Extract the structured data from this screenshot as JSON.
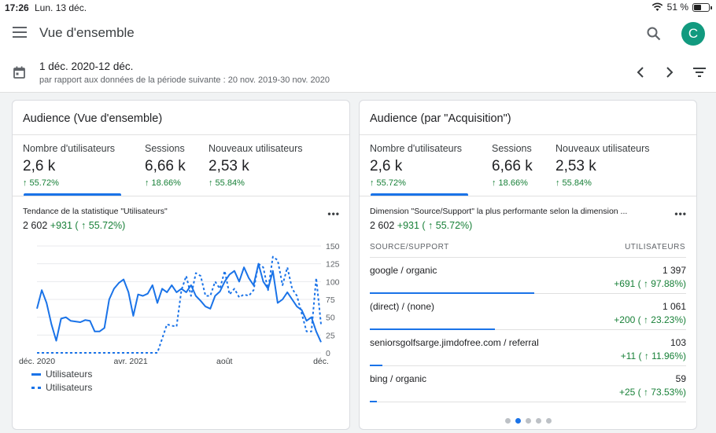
{
  "status_bar": {
    "time": "17:26",
    "date": "Lun. 13 déc.",
    "battery": "51 %"
  },
  "header": {
    "title": "Vue d'ensemble",
    "avatar_letter": "C"
  },
  "date_range": {
    "range": "1 déc. 2020-12 déc.",
    "compare": "par rapport aux données de la période suivante : 20 nov. 2019-30 nov. 2020"
  },
  "colors": {
    "accent": "#1a73e8",
    "positive": "#188038",
    "avatar": "#129a7f"
  },
  "audience_overview": {
    "title": "Audience (Vue d'ensemble)",
    "metrics": [
      {
        "label": "Nombre d'utilisateurs",
        "value": "2,6 k",
        "change": "↑ 55.72%"
      },
      {
        "label": "Sessions",
        "value": "6,66 k",
        "change": "↑ 18.66%"
      },
      {
        "label": "Nouveaux utilisateurs",
        "value": "2,53 k",
        "change": "↑ 55.84%"
      }
    ],
    "trend_title": "Tendance de la statistique \"Utilisateurs\"",
    "total": "2 602",
    "total_change": "+931 ( ↑ 55.72%)",
    "more": "•••"
  },
  "chart_data": {
    "type": "line",
    "x_tick_labels": [
      "déc. 2020",
      "avr. 2021",
      "août",
      "déc."
    ],
    "y_ticks": [
      0,
      25,
      50,
      75,
      100,
      125,
      150
    ],
    "ylim": [
      0,
      150
    ],
    "grid": true,
    "legend_position": "bottom-left",
    "series": [
      {
        "name": "Utilisateurs",
        "style": "solid",
        "values": [
          62,
          88,
          70,
          40,
          17,
          48,
          50,
          45,
          44,
          43,
          46,
          45,
          30,
          30,
          35,
          75,
          90,
          98,
          103,
          85,
          52,
          82,
          80,
          83,
          95,
          70,
          90,
          85,
          95,
          85,
          90,
          85,
          95,
          80,
          73,
          65,
          62,
          80,
          86,
          100,
          110,
          115,
          100,
          120,
          105,
          95,
          125,
          100,
          90,
          115,
          70,
          75,
          85,
          75,
          65,
          60,
          45,
          50,
          30,
          15
        ]
      },
      {
        "name": "Utilisateurs",
        "style": "dotted",
        "values": [
          0,
          0,
          0,
          0,
          0,
          0,
          0,
          0,
          0,
          0,
          0,
          0,
          0,
          0,
          0,
          0,
          0,
          0,
          0,
          0,
          0,
          0,
          0,
          0,
          0,
          0,
          20,
          40,
          38,
          37,
          88,
          108,
          80,
          112,
          108,
          80,
          80,
          100,
          90,
          115,
          82,
          90,
          78,
          82,
          80,
          88,
          125,
          120,
          88,
          135,
          130,
          95,
          120,
          90,
          80,
          55,
          30,
          30,
          105,
          40
        ]
      }
    ]
  },
  "acquisition": {
    "title": "Audience (par \"Acquisition\")",
    "metrics": [
      {
        "label": "Nombre d'utilisateurs",
        "value": "2,6 k",
        "change": "↑ 55.72%"
      },
      {
        "label": "Sessions",
        "value": "6,66 k",
        "change": "↑ 18.66%"
      },
      {
        "label": "Nouveaux utilisateurs",
        "value": "2,53 k",
        "change": "↑ 55.84%"
      }
    ],
    "dim_title": "Dimension \"Source/Support\" la plus performante selon la dimension ...",
    "total": "2 602",
    "total_change": "+931 ( ↑ 55.72%)",
    "col_source": "SOURCE/SUPPORT",
    "col_users": "UTILISATEURS",
    "more": "•••",
    "rows": [
      {
        "source": "google / organic",
        "users": "1 397",
        "change": "+691 ( ↑ 97.88%)",
        "share": 0.537
      },
      {
        "source": "(direct) / (none)",
        "users": "1 061",
        "change": "+200 ( ↑ 23.23%)",
        "share": 0.408
      },
      {
        "source": "seniorsgolfsarge.jimdofree.com / referral",
        "users": "103",
        "change": "+11 ( ↑ 11.96%)",
        "share": 0.04
      },
      {
        "source": "bing / organic",
        "users": "59",
        "change": "+25 ( ↑ 73.53%)",
        "share": 0.023
      }
    ],
    "page_dots": 5,
    "active_dot": 1
  }
}
